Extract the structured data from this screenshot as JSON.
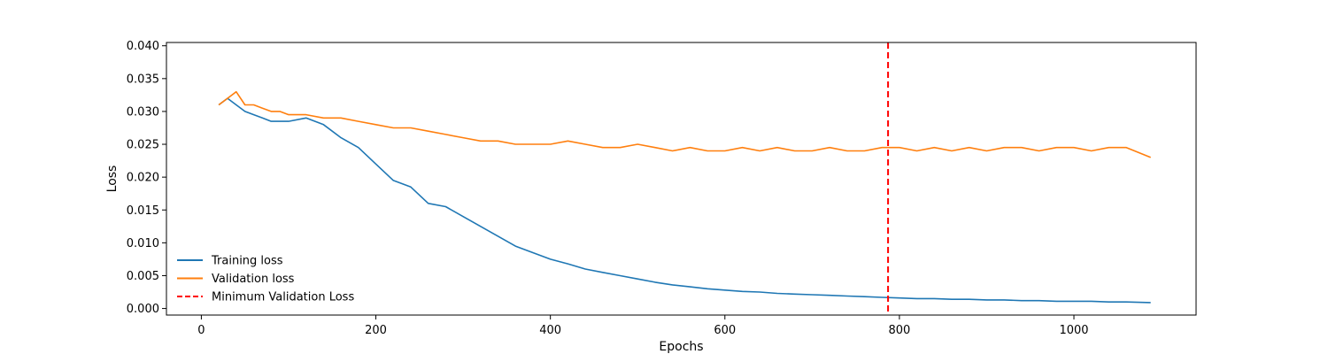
{
  "chart_data": {
    "type": "line",
    "title": "",
    "xlabel": "Epochs",
    "ylabel": "Loss",
    "xlim": [
      -40,
      1140
    ],
    "ylim": [
      -0.001,
      0.0405
    ],
    "xticks": [
      0,
      200,
      400,
      600,
      800,
      1000
    ],
    "yticks": [
      0.0,
      0.005,
      0.01,
      0.015,
      0.02,
      0.025,
      0.03,
      0.035,
      0.04
    ],
    "xtick_labels": [
      "0",
      "200",
      "400",
      "600",
      "800",
      "1000"
    ],
    "ytick_labels": [
      "0.000",
      "0.005",
      "0.010",
      "0.015",
      "0.020",
      "0.025",
      "0.030",
      "0.035",
      "0.040"
    ],
    "grid": false,
    "legend_position": "lower-left",
    "series": [
      {
        "name": "Training loss",
        "color": "#1f77b4",
        "style": "solid",
        "x": [
          20,
          30,
          40,
          50,
          60,
          70,
          80,
          90,
          100,
          120,
          140,
          160,
          180,
          200,
          220,
          240,
          260,
          280,
          300,
          320,
          340,
          360,
          380,
          400,
          420,
          440,
          460,
          480,
          500,
          520,
          540,
          560,
          580,
          600,
          620,
          640,
          660,
          680,
          700,
          720,
          740,
          760,
          780,
          800,
          820,
          840,
          860,
          880,
          900,
          920,
          940,
          960,
          980,
          1000,
          1020,
          1040,
          1060,
          1088
        ],
        "y": [
          0.031,
          0.032,
          0.031,
          0.03,
          0.0295,
          0.029,
          0.0285,
          0.0285,
          0.0285,
          0.029,
          0.028,
          0.026,
          0.0245,
          0.022,
          0.0195,
          0.0185,
          0.016,
          0.0155,
          0.014,
          0.0125,
          0.011,
          0.0095,
          0.0085,
          0.0075,
          0.0068,
          0.006,
          0.0055,
          0.005,
          0.0045,
          0.004,
          0.0036,
          0.0033,
          0.003,
          0.0028,
          0.0026,
          0.0025,
          0.0023,
          0.0022,
          0.0021,
          0.002,
          0.0019,
          0.0018,
          0.0017,
          0.0016,
          0.0015,
          0.0015,
          0.0014,
          0.0014,
          0.0013,
          0.0013,
          0.0012,
          0.0012,
          0.0011,
          0.0011,
          0.0011,
          0.001,
          0.001,
          0.0009
        ]
      },
      {
        "name": "Validation loss",
        "color": "#ff7f0e",
        "style": "solid",
        "x": [
          20,
          30,
          40,
          50,
          60,
          70,
          80,
          90,
          100,
          120,
          140,
          160,
          180,
          200,
          220,
          240,
          260,
          280,
          300,
          320,
          340,
          360,
          380,
          400,
          420,
          440,
          460,
          480,
          500,
          520,
          540,
          560,
          580,
          600,
          620,
          640,
          660,
          680,
          700,
          720,
          740,
          760,
          780,
          800,
          820,
          840,
          860,
          880,
          900,
          920,
          940,
          960,
          980,
          1000,
          1020,
          1040,
          1060,
          1088
        ],
        "y": [
          0.031,
          0.032,
          0.033,
          0.031,
          0.031,
          0.0305,
          0.03,
          0.03,
          0.0295,
          0.0295,
          0.029,
          0.029,
          0.0285,
          0.028,
          0.0275,
          0.0275,
          0.027,
          0.0265,
          0.026,
          0.0255,
          0.0255,
          0.025,
          0.025,
          0.025,
          0.0255,
          0.025,
          0.0245,
          0.0245,
          0.025,
          0.0245,
          0.024,
          0.0245,
          0.024,
          0.024,
          0.0245,
          0.024,
          0.0245,
          0.024,
          0.024,
          0.0245,
          0.024,
          0.024,
          0.0245,
          0.0245,
          0.024,
          0.0245,
          0.024,
          0.0245,
          0.024,
          0.0245,
          0.0245,
          0.024,
          0.0245,
          0.0245,
          0.024,
          0.0245,
          0.0245,
          0.023
        ]
      },
      {
        "name": "Minimum Validation Loss",
        "color": "#ff0000",
        "style": "dashed",
        "vline_x": 787
      }
    ]
  }
}
